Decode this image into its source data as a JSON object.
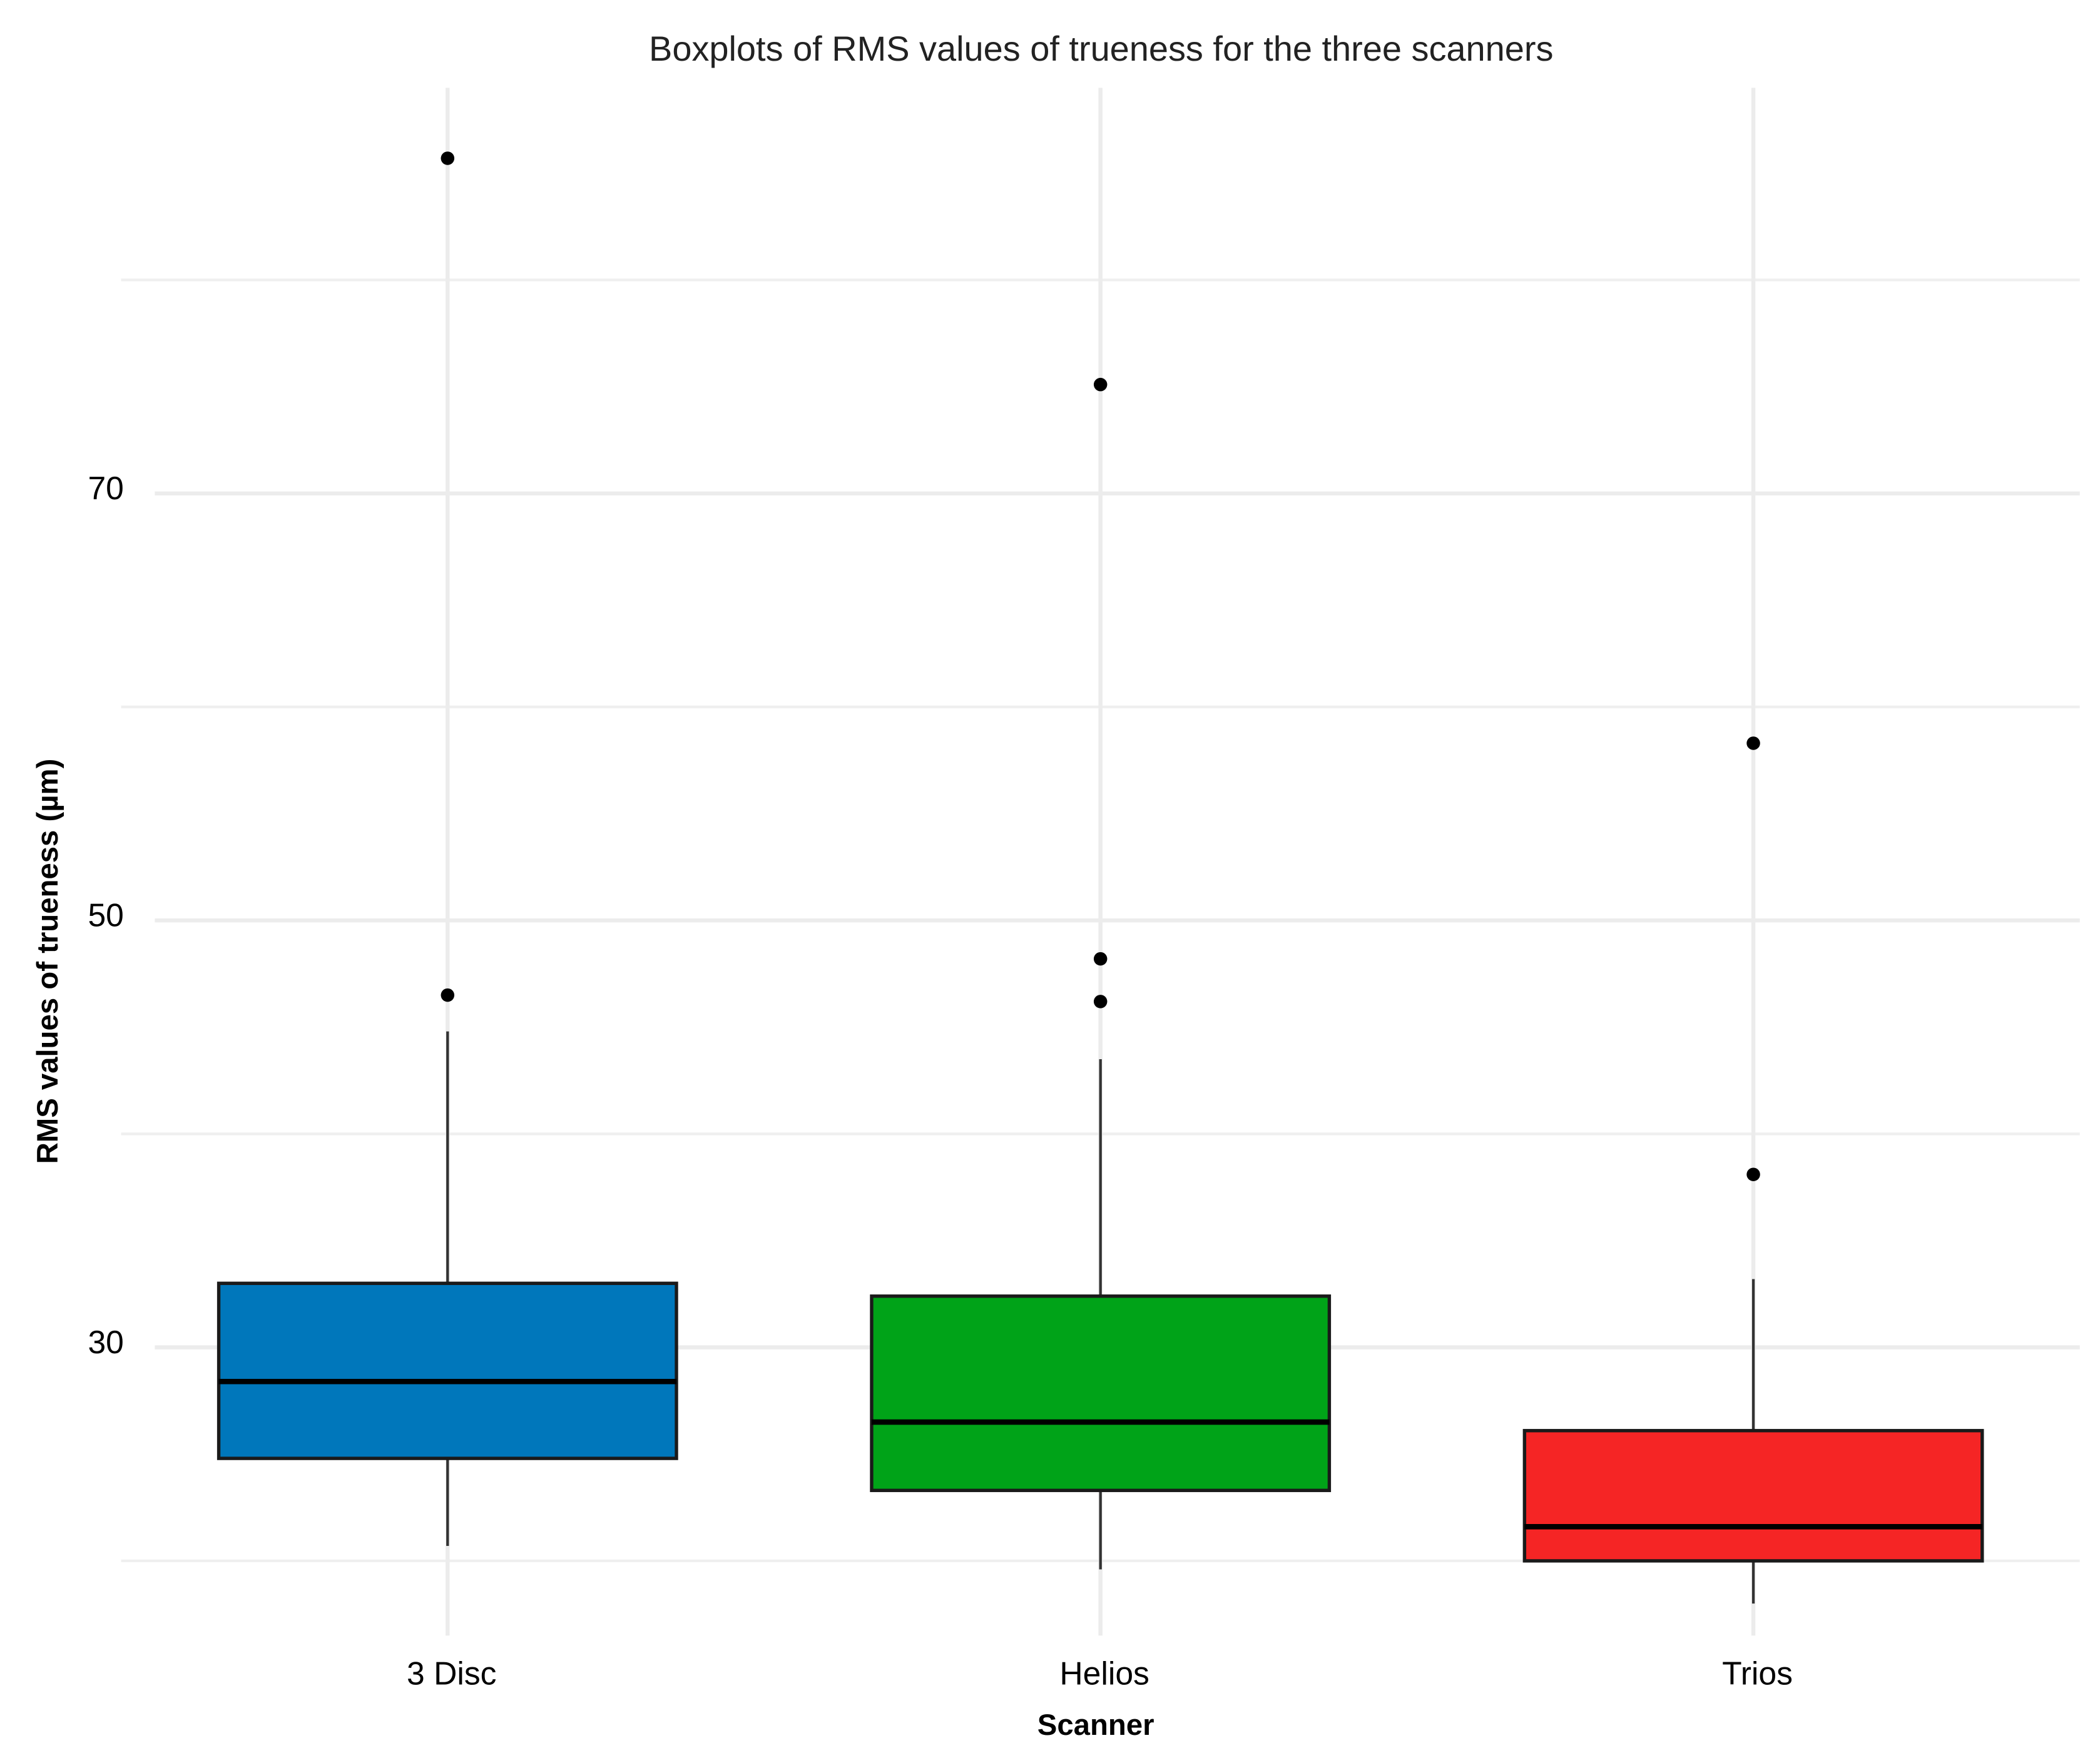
{
  "chart_data": {
    "type": "box",
    "title": "Boxplots of RMS values of trueness for the three scanners",
    "x_label": "Scanner",
    "y_label": "RMS values of trueness (µm)",
    "categories": [
      "3 Disc",
      "Helios",
      "Trios"
    ],
    "colors": [
      "#0077bb",
      "#00a318",
      "#f52525"
    ],
    "boxes": [
      {
        "min": 20.7,
        "q1": 24.8,
        "median": 28.4,
        "q3": 33.0,
        "max": 44.8,
        "outliers": [
          46.5,
          85.7
        ]
      },
      {
        "min": 19.6,
        "q1": 23.3,
        "median": 26.5,
        "q3": 32.4,
        "max": 43.5,
        "outliers": [
          46.2,
          48.2,
          75.1
        ]
      },
      {
        "min": 18.0,
        "q1": 20.0,
        "median": 21.6,
        "q3": 26.1,
        "max": 33.2,
        "outliers": [
          38.1,
          58.3
        ]
      }
    ],
    "ylim": [
      16.5,
      89
    ],
    "yticks": [
      30,
      50,
      70
    ],
    "minor_yticks": [
      20,
      40,
      60,
      80
    ],
    "grid": true
  }
}
